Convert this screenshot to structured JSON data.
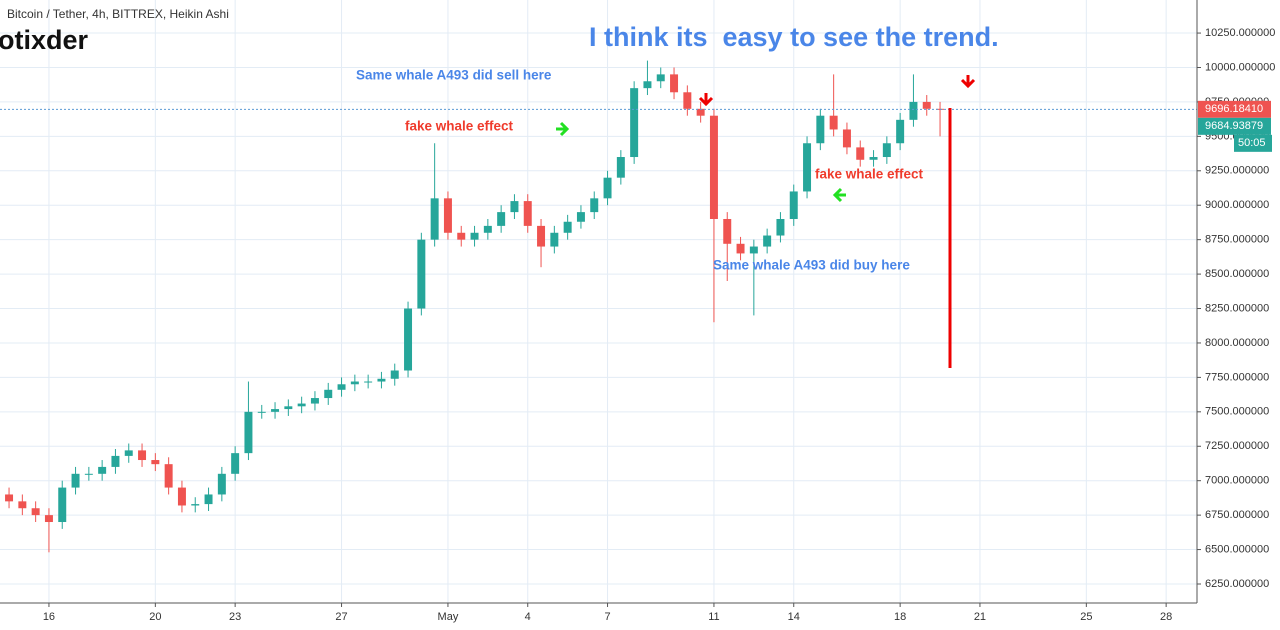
{
  "header": "Bitcoin / Tether, 4h, BITTREX, Heikin Ashi",
  "author": "otixder",
  "chart_data": {
    "type": "candlestick",
    "title": "I think its  easy to see the trend.",
    "annotations": [
      "Same whale A493 did sell here",
      "fake whale effect",
      "fake whale effect",
      "Same whale A493 did buy here"
    ],
    "up_color": "#26a69a",
    "down_color": "#ef5350",
    "x": [
      14.5,
      15,
      15.5,
      16,
      16.5,
      17,
      17.5,
      18,
      18.5,
      19,
      19.5,
      20,
      20.5,
      21,
      21.5,
      22,
      22.5,
      23,
      23.5,
      24,
      24.5,
      25,
      25.5,
      26,
      26.5,
      27,
      27.5,
      28,
      28.5,
      29,
      29.5,
      30,
      30.5,
      31,
      31.5,
      32,
      32.5,
      33,
      33.5,
      34,
      34.5,
      35,
      35.5,
      36,
      36.5,
      37,
      37.5,
      38,
      38.5,
      39,
      39.5,
      40,
      40.5,
      41,
      41.5,
      42,
      42.5,
      43,
      43.5,
      44,
      44.5,
      45,
      45.5,
      46,
      46.5,
      47,
      47.5,
      48,
      48.5,
      49,
      49.5
    ],
    "open": [
      6900,
      6850,
      6800,
      6750,
      6700,
      6950,
      7050,
      7050,
      7100,
      7180,
      7220,
      7150,
      7120,
      6950,
      6820,
      6830,
      6900,
      7050,
      7200,
      7500,
      7500,
      7520,
      7540,
      7560,
      7600,
      7660,
      7700,
      7720,
      7720,
      7740,
      7800,
      8250,
      8750,
      9050,
      8800,
      8750,
      8800,
      8850,
      8950,
      9030,
      8850,
      8700,
      8800,
      8880,
      8950,
      9050,
      9200,
      9350,
      9850,
      9900,
      9950,
      9820,
      9700,
      9650,
      8900,
      8720,
      8650,
      8700,
      8780,
      8900,
      9100,
      9450,
      9650,
      9550,
      9420,
      9330,
      9350,
      9450,
      9620,
      9750,
      9700
    ],
    "high": [
      6950,
      6900,
      6850,
      6800,
      7000,
      7100,
      7100,
      7150,
      7230,
      7270,
      7270,
      7200,
      7170,
      7000,
      6880,
      6950,
      7100,
      7250,
      7720,
      7550,
      7570,
      7590,
      7610,
      7650,
      7710,
      7750,
      7770,
      7770,
      7790,
      7850,
      8300,
      8800,
      9450,
      9100,
      8850,
      8850,
      8900,
      9000,
      9080,
      9080,
      8900,
      8850,
      8930,
      9000,
      9100,
      9250,
      9400,
      9900,
      10050,
      10000,
      10000,
      9870,
      9750,
      9700,
      8950,
      8770,
      8750,
      8830,
      8950,
      9150,
      9500,
      9700,
      9950,
      9600,
      9470,
      9400,
      9500,
      9670,
      9950,
      9800,
      9750
    ],
    "low": [
      6800,
      6750,
      6700,
      6480,
      6650,
      6900,
      7000,
      7000,
      7050,
      7130,
      7100,
      7070,
      6900,
      6770,
      6770,
      6780,
      6850,
      7000,
      7150,
      7450,
      7450,
      7470,
      7490,
      7510,
      7550,
      7610,
      7650,
      7670,
      7670,
      7690,
      7750,
      8200,
      8700,
      8750,
      8700,
      8700,
      8750,
      8800,
      8900,
      8800,
      8550,
      8650,
      8750,
      8830,
      8900,
      9000,
      9150,
      9300,
      9800,
      9850,
      9770,
      9650,
      9600,
      8150,
      8450,
      8600,
      8200,
      8650,
      8730,
      8850,
      9050,
      9400,
      9500,
      9370,
      9280,
      9280,
      9300,
      9400,
      9570,
      9650,
      9500
    ],
    "close": [
      6850,
      6800,
      6750,
      6700,
      6950,
      7050,
      7050,
      7100,
      7180,
      7220,
      7150,
      7120,
      6950,
      6820,
      6830,
      6900,
      7050,
      7200,
      7500,
      7500,
      7520,
      7540,
      7560,
      7600,
      7660,
      7700,
      7720,
      7720,
      7740,
      7800,
      8250,
      8750,
      9050,
      8800,
      8750,
      8800,
      8850,
      8950,
      9030,
      8850,
      8700,
      8800,
      8880,
      8950,
      9050,
      9200,
      9350,
      9850,
      9900,
      9950,
      9820,
      9700,
      9650,
      8900,
      8720,
      8650,
      8700,
      8780,
      8900,
      9100,
      9450,
      9650,
      9550,
      9420,
      9330,
      9350,
      9450,
      9620,
      9750,
      9700,
      9696
    ],
    "xlim": [
      14.16,
      59.16
    ],
    "xticks": [
      16,
      20,
      23,
      27,
      {
        "value": 31,
        "label": "May"
      },
      {
        "value": 34,
        "label": "4"
      },
      {
        "value": 37,
        "label": "7"
      },
      {
        "value": 41,
        "label": "11"
      },
      {
        "value": 44,
        "label": "14"
      },
      {
        "value": 48,
        "label": "18"
      },
      {
        "value": 51,
        "label": "21"
      },
      {
        "value": 55,
        "label": "25"
      },
      {
        "value": 58,
        "label": "28"
      }
    ],
    "ylim": [
      6112,
      10490
    ],
    "yticks": [
      {
        "value": 6250,
        "label": "6250.000000"
      },
      {
        "value": 6500,
        "label": "6500.000000"
      },
      {
        "value": 6750,
        "label": "6750.000000"
      },
      {
        "value": 7000,
        "label": "7000.000000"
      },
      {
        "value": 7250,
        "label": "7250.000000"
      },
      {
        "value": 7500,
        "label": "7500.000000"
      },
      {
        "value": 7750,
        "label": "7750.000000"
      },
      {
        "value": 8000,
        "label": "8000.000000"
      },
      {
        "value": 8250,
        "label": "8250.000000"
      },
      {
        "value": 8500,
        "label": "8500.000000"
      },
      {
        "value": 8750,
        "label": "8750.000000"
      },
      {
        "value": 9000,
        "label": "9000.000000"
      },
      {
        "value": 9250,
        "label": "9250.000000"
      },
      {
        "value": 9500,
        "label": "9500.000000"
      },
      {
        "value": 9750,
        "label": "9750.000000"
      },
      {
        "value": 10000,
        "label": "10000.000000"
      },
      {
        "value": 10250,
        "label": "10250.000000"
      }
    ],
    "price_labels": [
      {
        "value": 9696.1841,
        "label": "9696.18410",
        "color": "#ef5350"
      },
      {
        "value": 9684.93879,
        "label": "9684.93879",
        "color": "#26a69a"
      }
    ],
    "countdown": "50:05",
    "grid": true
  }
}
